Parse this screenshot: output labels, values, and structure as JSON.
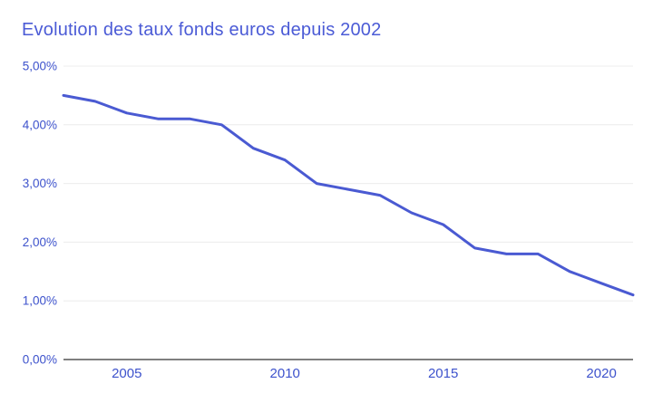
{
  "chart_data": {
    "type": "line",
    "title": "Evolution des taux fonds euros depuis 2002",
    "x": [
      2003,
      2004,
      2005,
      2006,
      2007,
      2008,
      2009,
      2010,
      2011,
      2012,
      2013,
      2014,
      2015,
      2016,
      2017,
      2018,
      2019,
      2020,
      2021
    ],
    "values": [
      4.5,
      4.4,
      4.2,
      4.1,
      4.1,
      4.0,
      3.6,
      3.4,
      3.0,
      2.9,
      2.8,
      2.5,
      2.3,
      1.9,
      1.8,
      1.8,
      1.5,
      1.3,
      1.1
    ],
    "xlabel": "",
    "ylabel": "",
    "ylim": [
      0,
      5
    ],
    "xlim": [
      2003,
      2021
    ],
    "y_ticks": {
      "values": [
        0,
        1,
        2,
        3,
        4,
        5
      ],
      "labels": [
        "0,00%",
        "1,00%",
        "2,00%",
        "3,00%",
        "4,00%",
        "5,00%"
      ]
    },
    "x_ticks": {
      "values": [
        2005,
        2010,
        2015,
        2020
      ],
      "labels": [
        "2005",
        "2010",
        "2015",
        "2020"
      ]
    },
    "grid": "horizontal",
    "legend": "none"
  },
  "style": {
    "title_color": "#4b5bd6",
    "line_color": "#4a5ad2",
    "tick_label_color": "#3d52cc",
    "gridline_color": "#ececec",
    "axis_line_color": "#7f7f7f",
    "background_color": "#ffffff"
  }
}
